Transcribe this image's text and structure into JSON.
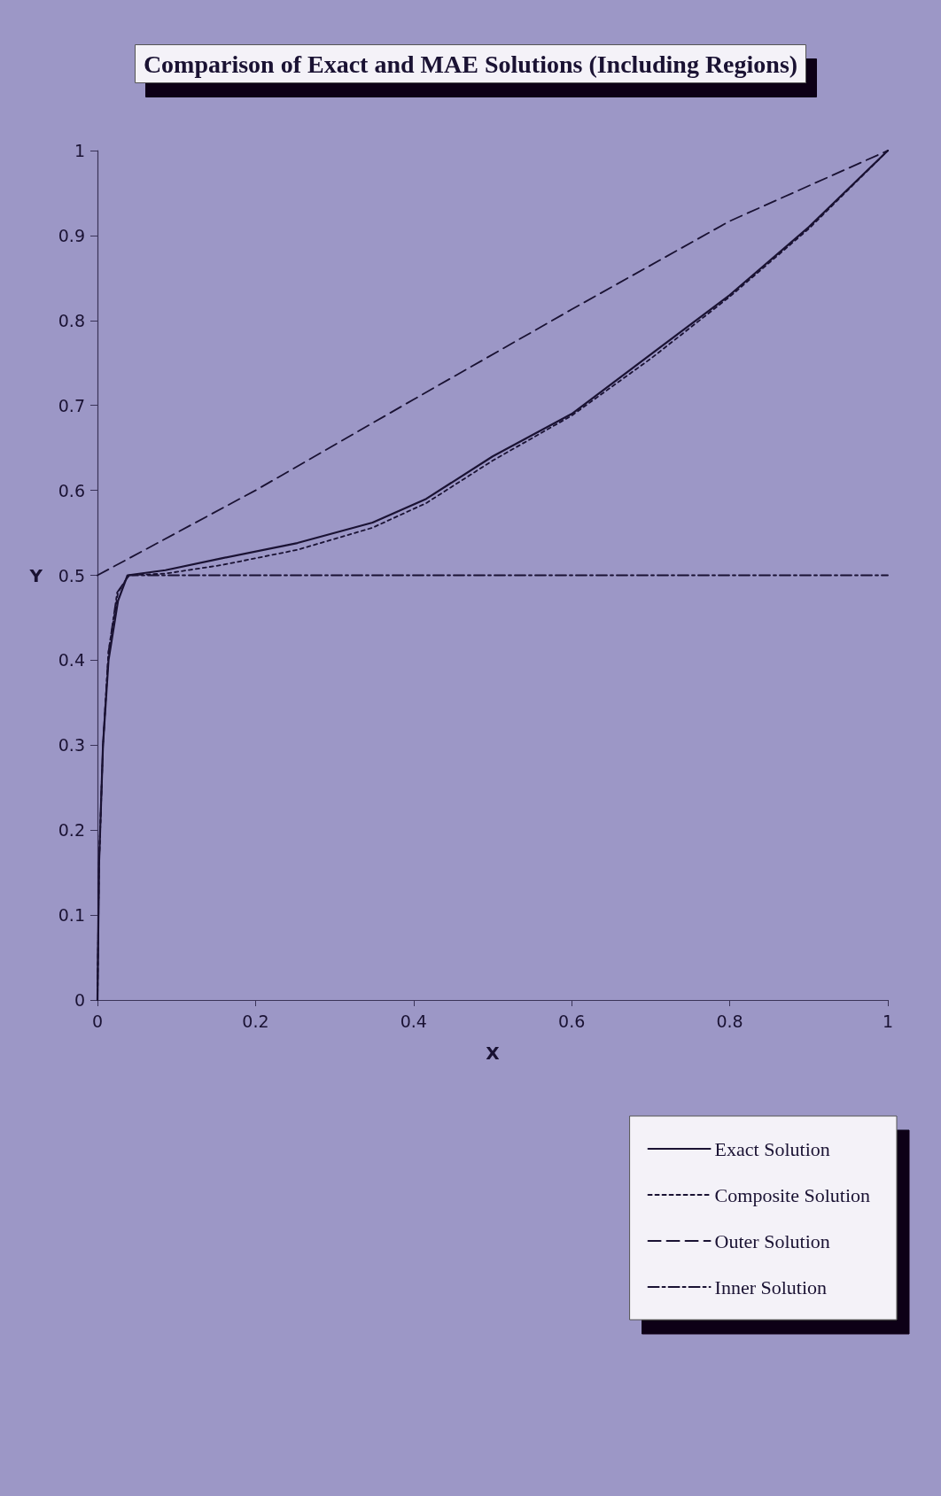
{
  "chart_data": {
    "type": "line",
    "title": "Comparison of Exact and MAE Solutions (Including Regions)",
    "xlabel": "X",
    "ylabel": "Y",
    "xlim": [
      0,
      1
    ],
    "xticks": [
      0,
      0.2,
      0.4,
      0.6,
      0.8,
      1
    ],
    "ylim": [
      0,
      1
    ],
    "yticks": [
      0,
      0.1,
      0.2,
      0.3,
      0.4,
      0.5,
      0.6,
      0.7,
      0.8,
      0.9,
      1
    ],
    "grid": false,
    "legend": "right",
    "marker": "none",
    "series": [
      {
        "name": "Exact Solution",
        "color": "#1a1233",
        "line_style": "solid",
        "x": [
          0,
          0.002,
          0.007,
          0.014,
          0.026,
          0.038,
          0.086,
          0.157,
          0.253,
          0.348,
          0.416,
          0.5,
          0.6,
          0.7,
          0.8,
          0.9,
          1
        ],
        "values": [
          0,
          0.16,
          0.3,
          0.4,
          0.47,
          0.5,
          0.506,
          0.52,
          0.538,
          0.562,
          0.59,
          0.64,
          0.69,
          0.76,
          0.83,
          0.91,
          1
        ]
      },
      {
        "name": "Composite Solution",
        "color": "#1a1233",
        "line_style": "dotted",
        "x": [
          0,
          0.002,
          0.007,
          0.014,
          0.026,
          0.04,
          0.086,
          0.157,
          0.253,
          0.348,
          0.416,
          0.5,
          0.6,
          0.7,
          0.8,
          0.9,
          1
        ],
        "values": [
          0,
          0.16,
          0.3,
          0.41,
          0.48,
          0.5,
          0.502,
          0.512,
          0.53,
          0.556,
          0.585,
          0.635,
          0.688,
          0.755,
          0.828,
          0.908,
          1
        ]
      },
      {
        "name": "Outer Solution",
        "color": "#1a1233",
        "line_style": "dashed",
        "x": [
          0,
          0.2,
          0.4,
          0.6,
          0.8,
          1
        ],
        "values": [
          0.5,
          0.6,
          0.707,
          0.813,
          0.917,
          1
        ]
      },
      {
        "name": "Inner Solution",
        "color": "#1a1233",
        "line_style": "dashdot",
        "x": [
          0,
          0.002,
          0.007,
          0.014,
          0.025,
          0.04,
          1
        ],
        "values": [
          0,
          0.16,
          0.3,
          0.41,
          0.48,
          0.5,
          0.5
        ]
      }
    ]
  }
}
